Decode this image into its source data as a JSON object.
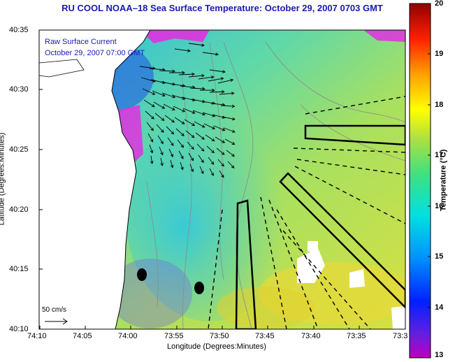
{
  "title": "RU COOL  NOAA–18  Sea Surface Temperature:  October 29, 2007 0703 GMT",
  "inset_line1": "Raw Surface Current",
  "inset_line2": "October 29, 2007 07:00 GMT",
  "scale_label": "50 cm/s",
  "xlabel": "Longitude (Degrees:Minutes)",
  "ylabel": "Latitude (Degrees:Minutes)",
  "colorbar_label": "Temperature (°C)",
  "yticks": [
    "40:35",
    "40:30",
    "40:25",
    "40:20",
    "40:15",
    "40:10"
  ],
  "xticks": [
    "74:10",
    "74:05",
    "74:00",
    "73:55",
    "73:50",
    "73:45",
    "73:40",
    "73:35",
    "73:3"
  ],
  "colorbar_ticks": [
    "20",
    "19",
    "18",
    "17",
    "16",
    "15",
    "14",
    "13"
  ],
  "colorbar_range": [
    13,
    20
  ],
  "colors": {
    "title": "#1a1ab0",
    "land": "#ffffff",
    "ocean_mid": "#3fd0c0",
    "ocean_warm": "#c9e34a",
    "cold_edge": "#e030e0",
    "boundaries": "#000000"
  }
}
